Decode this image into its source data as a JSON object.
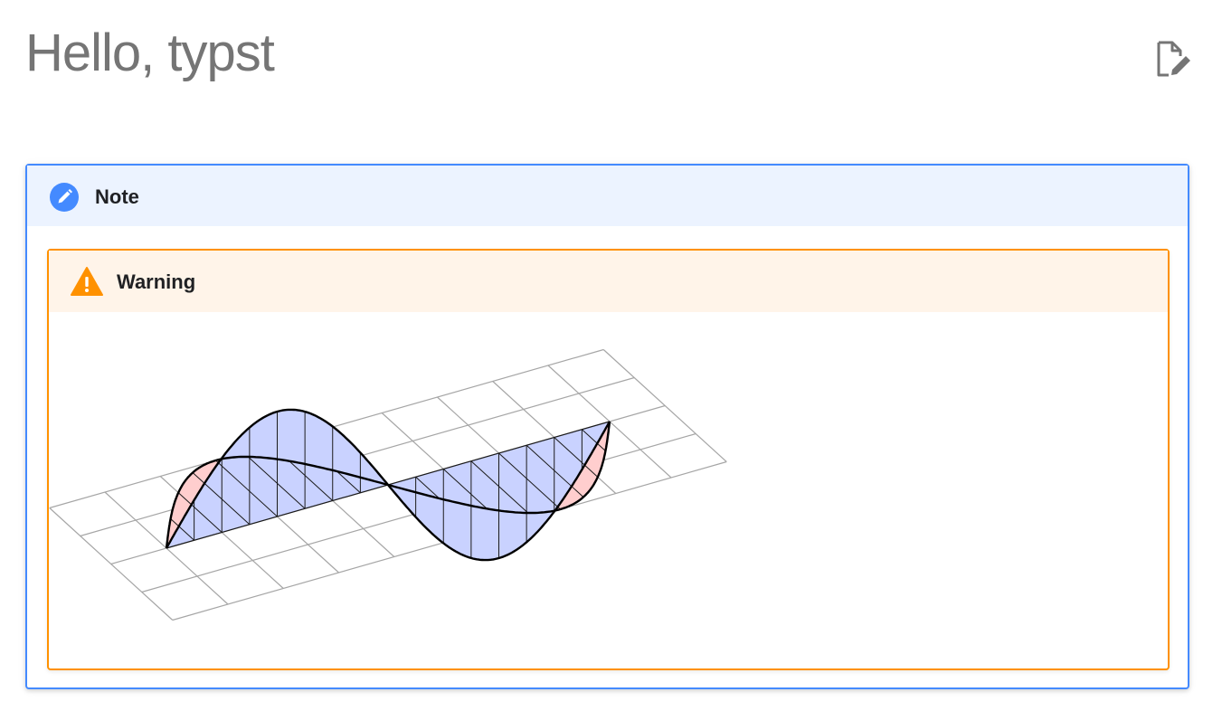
{
  "page": {
    "title": "Hello, typst",
    "edit_icon": "edit-page-icon"
  },
  "note": {
    "title": "Note",
    "icon": "pencil-icon",
    "accent_color": "#448aff",
    "header_bg": "#ecf3ff"
  },
  "warning": {
    "title": "Warning",
    "icon": "warning-triangle-icon",
    "accent_color": "#ff9100",
    "header_bg": "#fff4e9"
  },
  "figure": {
    "description_colors": {
      "vertical_wave_fill": "#c9d2ff",
      "horizontal_wave_fill": "#ffcece",
      "grid_color": "#a6a6a6",
      "curve_color": "#000000"
    }
  }
}
